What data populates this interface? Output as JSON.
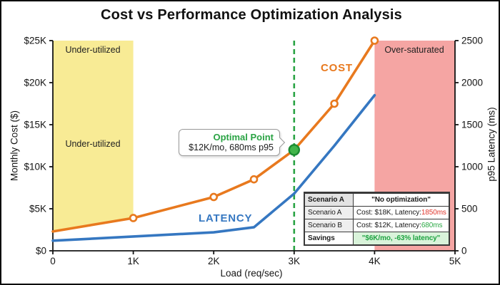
{
  "title": "Cost vs Performance Optimization Analysis",
  "colors": {
    "cost_line": "#e8791e",
    "latency_line": "#3577c1",
    "optimal_green": "#2aa344",
    "optimal_dot_fill": "#41b54a",
    "optimal_dot_edge": "#1d8c33",
    "under_region": "#f8eb95",
    "over_region": "#f5a5a3",
    "savings_bg": "#d9f3da",
    "red_value": "#e0362c",
    "green_value": "#2aa844",
    "axis": "#141414"
  },
  "chart_data": {
    "type": "line",
    "title": "Cost vs Performance Optimization Analysis",
    "xlabel": "Load (req/sec)",
    "ylabel_left": "Monthly Cost ($)",
    "ylabel_right": "p95 Latency (ms)",
    "x_range": [
      0,
      5000
    ],
    "y_left_range": [
      0,
      25000
    ],
    "y_right_range": [
      0,
      2500
    ],
    "x_ticks": [
      {
        "v": 0,
        "label": "0"
      },
      {
        "v": 1000,
        "label": "1K"
      },
      {
        "v": 2000,
        "label": "2K"
      },
      {
        "v": 3000,
        "label": "3K"
      },
      {
        "v": 4000,
        "label": "4K"
      },
      {
        "v": 5000,
        "label": "5K"
      }
    ],
    "y_left_ticks": [
      {
        "v": 0,
        "label": "$0"
      },
      {
        "v": 5000,
        "label": "$5K"
      },
      {
        "v": 10000,
        "label": "$10K"
      },
      {
        "v": 15000,
        "label": "$15K"
      },
      {
        "v": 20000,
        "label": "$20K"
      },
      {
        "v": 25000,
        "label": "$25K"
      }
    ],
    "y_right_ticks": [
      {
        "v": 0,
        "label": "0"
      },
      {
        "v": 500,
        "label": "500"
      },
      {
        "v": 1000,
        "label": "1000"
      },
      {
        "v": 1500,
        "label": "1500"
      },
      {
        "v": 2000,
        "label": "2000"
      },
      {
        "v": 2500,
        "label": "2500"
      }
    ],
    "series": [
      {
        "name": "COST",
        "axis": "left",
        "color": "#e8791e",
        "x": [
          0,
          1000,
          2000,
          2500,
          3000,
          3500,
          4000
        ],
        "values": [
          2300,
          3900,
          6400,
          8500,
          12000,
          17500,
          25000
        ],
        "marker_x": [
          1000,
          2000,
          2500,
          3500,
          4000
        ]
      },
      {
        "name": "LATENCY",
        "axis": "right",
        "color": "#3577c1",
        "x": [
          0,
          1000,
          2000,
          2500,
          3000,
          3500,
          4000
        ],
        "values": [
          120,
          170,
          220,
          280,
          680,
          1250,
          1850
        ],
        "marker_x": []
      }
    ],
    "regions": [
      {
        "label": "Under-utilized",
        "x0": 0,
        "x1": 1000,
        "color": "#f8eb95",
        "bottom": "cost-line"
      },
      {
        "label": "Over-saturated",
        "x0": 4000,
        "x1": 5000,
        "color": "#f5a5a3",
        "bottom": "axis"
      }
    ],
    "optimal_line_x": 3000,
    "optimal_point": {
      "x": 3000,
      "cost": 12000,
      "latency": 680
    }
  },
  "labels": {
    "cost_series": "COST",
    "latency_series": "LATENCY",
    "under_utilized_top": "Under-utilized",
    "under_utilized_mid": "Under-utilized",
    "over_saturated": "Over-saturated"
  },
  "annotation": {
    "title": "Optimal Point",
    "detail": "$12K/mo, 680ms p95"
  },
  "table": {
    "header_left": "Scenario A",
    "header_right": "\"No optimization\"",
    "row_a_left": "Scenario A",
    "row_a_text": "Cost: $18K, Latency: ",
    "row_a_value": "1850ms",
    "row_b_left": "Scenario B",
    "row_b_text": "Cost: $12K, Latency: ",
    "row_b_value": "680ms",
    "savings_left": "Savings",
    "savings_right": "\"$6K/mo, -63% latency\""
  }
}
